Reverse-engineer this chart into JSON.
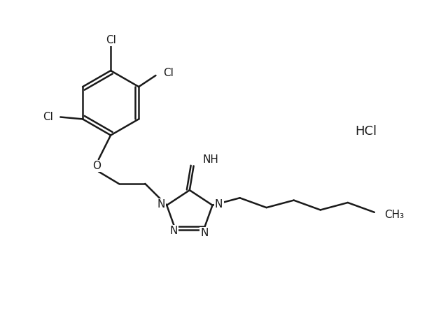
{
  "background_color": "#ffffff",
  "line_color": "#1a1a1a",
  "line_width": 1.8,
  "font_size_atom": 11,
  "font_size_label": 13,
  "hcl_label": "HCl",
  "imine_label": "NH",
  "ch3_label": "CH₃"
}
